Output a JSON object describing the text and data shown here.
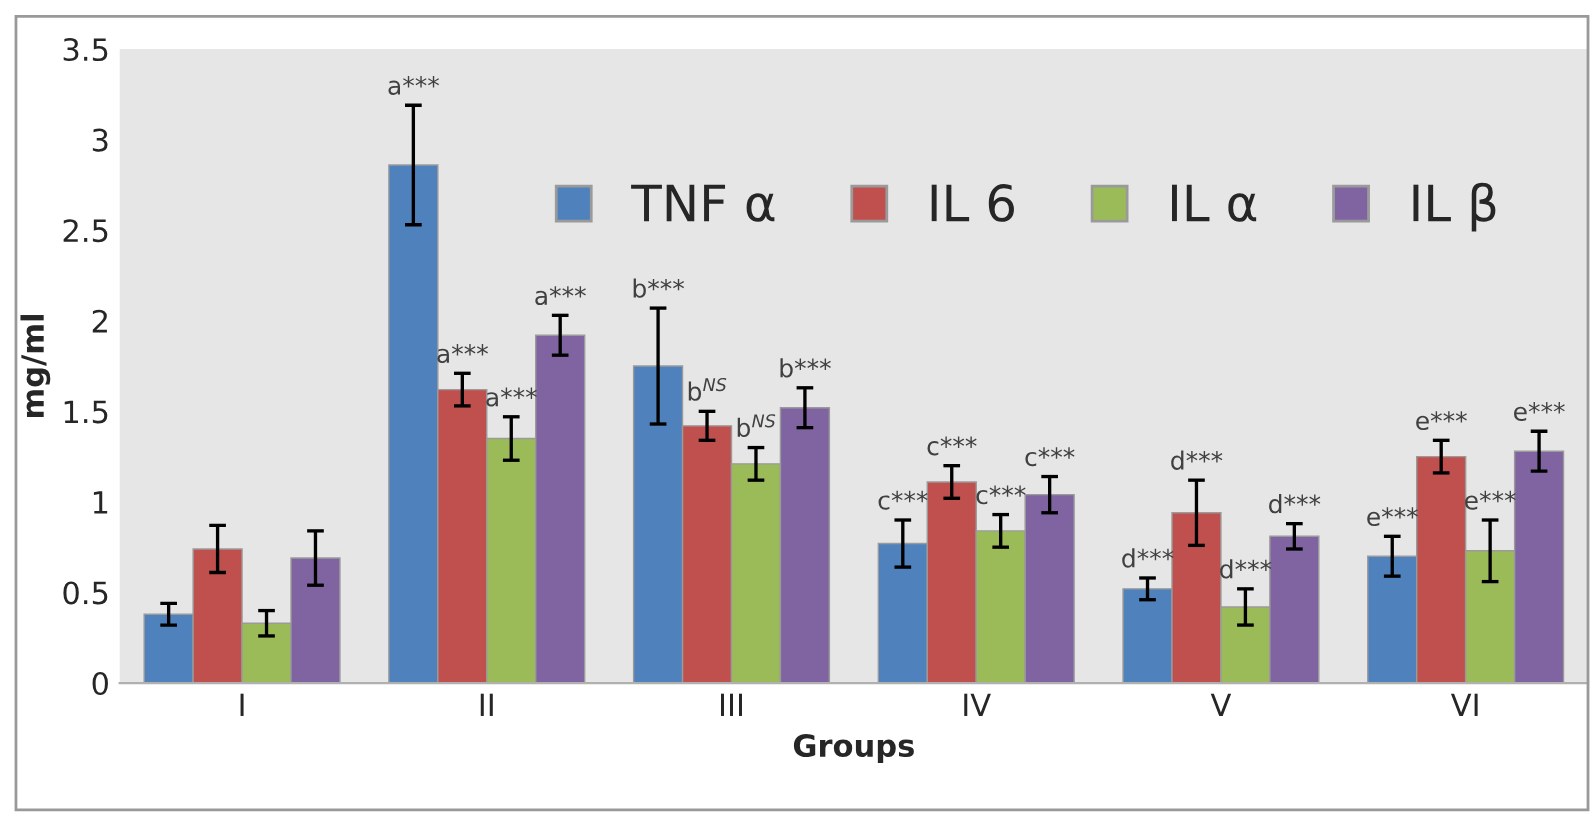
{
  "chart_data": {
    "type": "bar",
    "xlabel": "Groups",
    "ylabel": "mg/ml",
    "categories": [
      "I",
      "II",
      "III",
      "IV",
      "V",
      "VI"
    ],
    "series": [
      {
        "name": "TNF α",
        "color": "#4f81bd",
        "values": [
          0.38,
          2.86,
          1.75,
          0.77,
          0.52,
          0.7
        ],
        "errors": [
          0.06,
          0.33,
          0.32,
          0.13,
          0.06,
          0.11
        ],
        "value_labels": [
          null,
          "a***",
          "b***",
          "c***",
          "d***",
          "e***"
        ]
      },
      {
        "name": "IL 6",
        "color": "#c0504d",
        "values": [
          0.74,
          1.62,
          1.42,
          1.11,
          0.94,
          1.25
        ],
        "errors": [
          0.13,
          0.09,
          0.08,
          0.09,
          0.18,
          0.09
        ],
        "value_labels": [
          null,
          "a***",
          "b$^{NS}$",
          "c***",
          "d***",
          "e***"
        ]
      },
      {
        "name": "IL α",
        "color": "#9bbb59",
        "values": [
          0.33,
          1.35,
          1.21,
          0.84,
          0.42,
          0.73
        ],
        "errors": [
          0.07,
          0.12,
          0.09,
          0.09,
          0.1,
          0.17
        ],
        "value_labels": [
          null,
          "a***",
          "b$^{NS}$",
          "c***",
          "d***",
          "e***"
        ]
      },
      {
        "name": "IL β",
        "color": "#8064a2",
        "values": [
          0.69,
          1.92,
          1.52,
          1.04,
          0.81,
          1.28
        ],
        "errors": [
          0.15,
          0.11,
          0.11,
          0.1,
          0.07,
          0.11
        ],
        "value_labels": [
          null,
          "a***",
          "b***",
          "c***",
          "d***",
          "e***"
        ]
      }
    ],
    "ylim": [
      0,
      3.5
    ],
    "yticks": [
      0,
      0.5,
      1,
      1.5,
      2,
      2.5,
      3,
      3.5
    ],
    "grid": false,
    "legend": "top right"
  }
}
